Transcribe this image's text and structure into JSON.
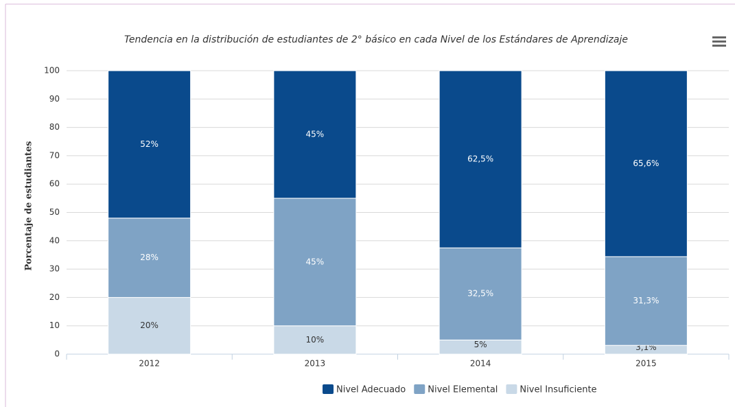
{
  "chart_data": {
    "type": "stacked_bar",
    "title": "Tendencia en la distribución de estudiantes de 2° básico en cada Nivel de los Estándares de Aprendizaje",
    "y_label": "Porcentaje de estudiantes",
    "categories": [
      "2012",
      "2013",
      "2014",
      "2015"
    ],
    "series": [
      {
        "name": "Nivel Adecuado",
        "color": "#0a4a8c",
        "values": [
          52,
          45,
          62.5,
          65.6
        ],
        "value_labels": [
          "52%",
          "45%",
          "62,5%",
          "65,6%"
        ]
      },
      {
        "name": "Nivel Elemental",
        "color": "#7fa3c5",
        "values": [
          28,
          45,
          32.5,
          31.3
        ],
        "value_labels": [
          "28%",
          "45%",
          "32,5%",
          "31,3%"
        ]
      },
      {
        "name": "Nivel Insuficiente",
        "color": "#c9d9e7",
        "values": [
          20,
          10,
          5,
          3.1
        ],
        "value_labels": [
          "20%",
          "10%",
          "5%",
          "3,1%"
        ]
      }
    ],
    "ylim": [
      0,
      100
    ],
    "yticks": [
      0,
      10,
      20,
      30,
      40,
      50,
      60,
      70,
      80,
      90,
      100
    ],
    "grid": true
  }
}
